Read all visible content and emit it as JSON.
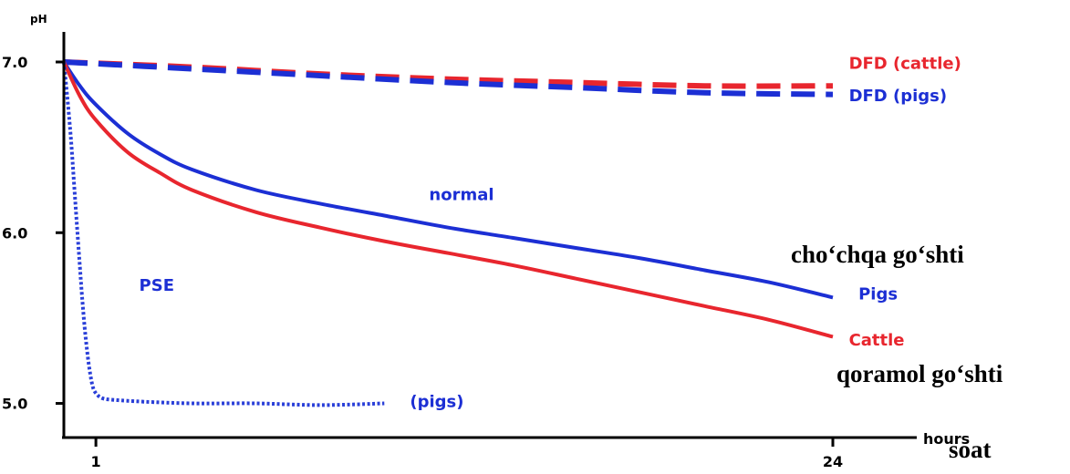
{
  "chart_data": {
    "type": "line",
    "title": "",
    "ylabel": "pH",
    "xlabel": "hours",
    "ylim": [
      4.8,
      7.15
    ],
    "xlim": [
      0,
      25.2
    ],
    "y_ticks": [
      5.0,
      6.0,
      7.0
    ],
    "y_tick_labels": [
      "5.0",
      "6.0",
      "7.0"
    ],
    "x_ticks": [
      1,
      24
    ],
    "x_tick_labels": [
      "1",
      "24"
    ],
    "grid": false,
    "legend": "none",
    "series": [
      {
        "name": "DFD (cattle)",
        "color": "#e8262e",
        "style": "dashed",
        "x": [
          0,
          4,
          8,
          12,
          16,
          20,
          24
        ],
        "y": [
          7.0,
          6.97,
          6.93,
          6.9,
          6.88,
          6.86,
          6.86
        ]
      },
      {
        "name": "DFD (pigs)",
        "color": "#1c2fd4",
        "style": "dashed",
        "x": [
          0,
          4,
          8,
          12,
          16,
          20,
          24
        ],
        "y": [
          7.0,
          6.96,
          6.92,
          6.88,
          6.85,
          6.82,
          6.81
        ]
      },
      {
        "name": "Pigs",
        "color": "#1c2fd4",
        "style": "solid",
        "x": [
          0,
          0.5,
          1,
          2,
          3,
          4,
          6,
          8,
          10,
          12,
          14,
          16,
          18,
          20,
          22,
          24
        ],
        "y": [
          7.0,
          6.86,
          6.75,
          6.58,
          6.46,
          6.37,
          6.25,
          6.17,
          6.1,
          6.03,
          5.97,
          5.91,
          5.85,
          5.78,
          5.71,
          5.62
        ]
      },
      {
        "name": "Cattle",
        "color": "#e8262e",
        "style": "solid",
        "x": [
          0,
          0.5,
          1,
          2,
          3,
          4,
          6,
          8,
          10,
          12,
          14,
          16,
          18,
          20,
          22,
          24
        ],
        "y": [
          7.0,
          6.8,
          6.66,
          6.47,
          6.35,
          6.25,
          6.12,
          6.03,
          5.95,
          5.88,
          5.81,
          5.73,
          5.65,
          5.57,
          5.49,
          5.39
        ]
      },
      {
        "name": "PSE (pigs)",
        "color": "#2a3fd8",
        "style": "dotted",
        "x": [
          0,
          0.2,
          0.35,
          0.5,
          0.6,
          0.7,
          0.8,
          0.9,
          1.0,
          1.2,
          1.6,
          2.5,
          4,
          6,
          8,
          10
        ],
        "y": [
          7.0,
          6.6,
          6.2,
          5.8,
          5.55,
          5.35,
          5.2,
          5.1,
          5.06,
          5.03,
          5.02,
          5.01,
          5.0,
          5.0,
          4.99,
          5.0
        ]
      }
    ],
    "annotations": [
      {
        "text": "DFD (cattle)",
        "x": 24.5,
        "y": 6.96,
        "color": "#e8262e"
      },
      {
        "text": "DFD (pigs)",
        "x": 24.5,
        "y": 6.77,
        "color": "#1c2fd4"
      },
      {
        "text": "normal",
        "x": 11.4,
        "y": 6.19,
        "color": "#1c2fd4"
      },
      {
        "text": "PSE",
        "x": 2.35,
        "y": 5.66,
        "color": "#1c2fd4"
      },
      {
        "text": "Pigs",
        "x": 24.8,
        "y": 5.61,
        "color": "#1c2fd4"
      },
      {
        "text": "Cattle",
        "x": 24.5,
        "y": 5.34,
        "color": "#e8262e"
      },
      {
        "text": "(pigs)",
        "x": 10.8,
        "y": 4.98,
        "color": "#1c2fd4"
      }
    ]
  },
  "notes": {
    "pigs_meat": "cho‘chqa go‘shti",
    "cattle_meat": "qoramol go‘shti",
    "time": "soat"
  }
}
